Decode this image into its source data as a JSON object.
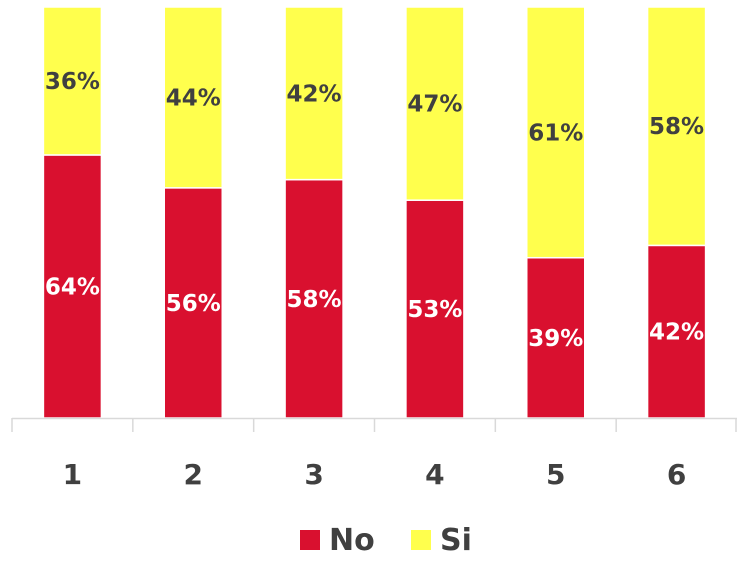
{
  "chart_data": {
    "type": "bar",
    "stacked": true,
    "percent": true,
    "categories": [
      "1",
      "2",
      "3",
      "4",
      "5",
      "6"
    ],
    "series": [
      {
        "name": "No",
        "color": "#d9102f",
        "label_color": "#ffffff",
        "values": [
          64,
          56,
          58,
          53,
          39,
          42
        ],
        "labels": [
          "64%",
          "56%",
          "58%",
          "53%",
          "39%",
          "42%"
        ]
      },
      {
        "name": "Si",
        "color": "#ffff4d",
        "label_color": "#404040",
        "values": [
          36,
          44,
          42,
          47,
          61,
          58
        ],
        "labels": [
          "36%",
          "44%",
          "42%",
          "47%",
          "61%",
          "58%"
        ]
      }
    ],
    "ylim": [
      0,
      100
    ],
    "title": "",
    "xlabel": "",
    "ylabel": "",
    "grid": false,
    "legend_position": "bottom"
  }
}
